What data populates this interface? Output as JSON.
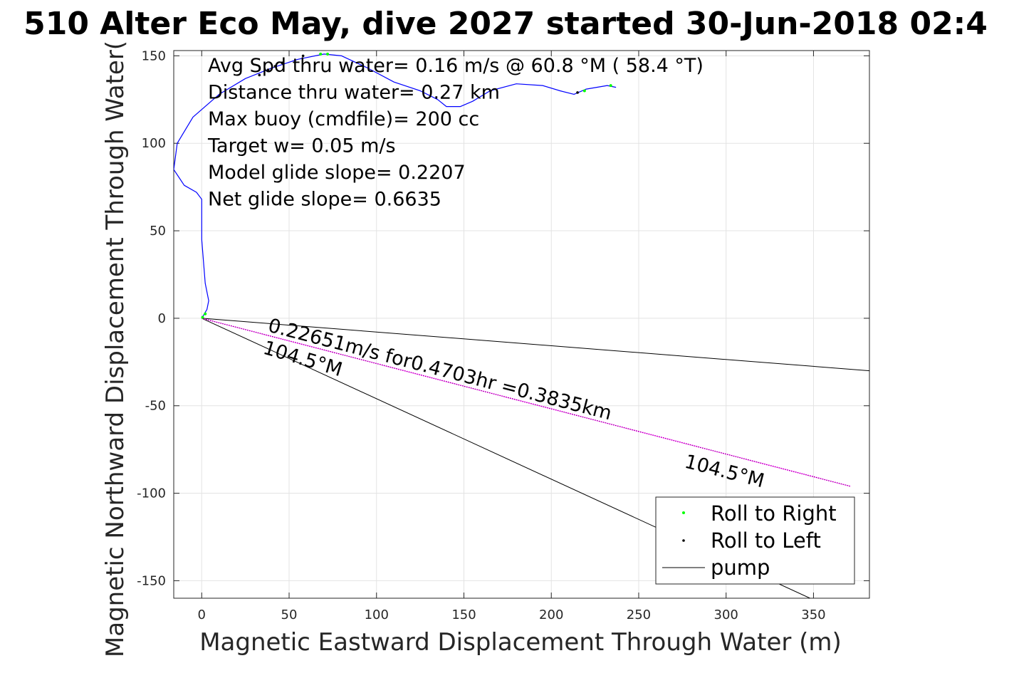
{
  "chart_data": {
    "type": "scatter",
    "title": "510 Alter Eco May, dive 2027 started 30-Jun-2018 02:4",
    "xlabel": "Magnetic Eastward Displacement Through Water (m)",
    "ylabel": "Magnetic Northward Displacement Through Water(",
    "xlim": [
      -16,
      382
    ],
    "ylim": [
      -160,
      153
    ],
    "xticks": [
      0,
      50,
      100,
      150,
      200,
      250,
      300,
      350
    ],
    "yticks": [
      -150,
      -100,
      -50,
      0,
      50,
      100,
      150
    ],
    "grid": true,
    "legend_position": "bottom-right",
    "stats": [
      "Avg Spd thru water=  0.16 m/s @  60.8 °M ( 58.4 °T)",
      "Distance thru water=  0.27 km",
      "Max buoy (cmdfile)= 200 cc",
      "Target w= 0.05 m/s",
      "Model glide slope= 0.2207",
      "Net glide slope= 0.6635"
    ],
    "annotations": {
      "current": "0.22651m/s for0.4703hr =0.3835km",
      "heading_near": "104.5°M",
      "heading_far": "104.5°M"
    },
    "colors": {
      "track": "#0000ff",
      "current_vector": "#ff00ff",
      "roll_right": "#00ff00",
      "roll_left": "#000000",
      "pump": "#000000"
    },
    "series": [
      {
        "name": "Roll to Right",
        "marker": "dot",
        "points": [
          [
            0.5,
            0.5
          ],
          [
            2,
            2.5
          ],
          [
            68,
            151
          ],
          [
            72,
            151
          ],
          [
            219,
            130
          ],
          [
            234,
            133
          ]
        ]
      },
      {
        "name": "Roll to Left",
        "marker": "dot",
        "points": [
          [
            33,
            139
          ],
          [
            38,
            142
          ],
          [
            42,
            144
          ],
          [
            46,
            146
          ],
          [
            58,
            150
          ],
          [
            215,
            129
          ]
        ]
      },
      {
        "name": "pump",
        "marker": "line",
        "points": []
      }
    ],
    "track": [
      [
        0,
        0
      ],
      [
        3,
        5
      ],
      [
        4,
        10
      ],
      [
        2,
        20
      ],
      [
        0,
        45
      ],
      [
        0,
        68
      ],
      [
        -3,
        72
      ],
      [
        -10,
        76
      ],
      [
        -16,
        85
      ],
      [
        -14,
        100
      ],
      [
        -5,
        115
      ],
      [
        10,
        128
      ],
      [
        25,
        137
      ],
      [
        40,
        143
      ],
      [
        55,
        148
      ],
      [
        70,
        151
      ],
      [
        80,
        150
      ],
      [
        95,
        143
      ],
      [
        110,
        135
      ],
      [
        125,
        130
      ],
      [
        135,
        125
      ],
      [
        140,
        121
      ],
      [
        148,
        121
      ],
      [
        155,
        124
      ],
      [
        165,
        130
      ],
      [
        180,
        134
      ],
      [
        195,
        133
      ],
      [
        205,
        130
      ],
      [
        213,
        128
      ],
      [
        220,
        131
      ],
      [
        232,
        133
      ],
      [
        237,
        132
      ]
    ],
    "heading_lines": [
      [
        [
          0,
          0
        ],
        [
          382,
          -30
        ]
      ],
      [
        [
          0,
          0
        ],
        [
          348,
          -160
        ]
      ]
    ],
    "current_vector": [
      [
        0,
        0
      ],
      [
        371,
        -96
      ]
    ]
  }
}
